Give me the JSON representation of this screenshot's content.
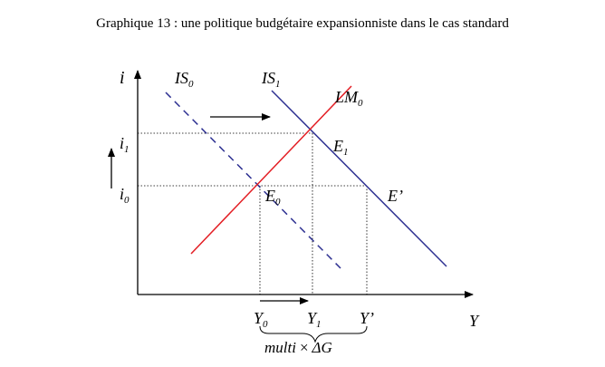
{
  "title": "Graphique 13 : une politique budgétaire expansionniste dans le cas standard",
  "axes": {
    "y_axis": {
      "main": "i"
    },
    "x_axis": {
      "main": "Y"
    }
  },
  "curves": {
    "is0": {
      "main": "IS",
      "sub": "0"
    },
    "is1": {
      "main": "IS",
      "sub": "1"
    },
    "lm0": {
      "main": "LM",
      "sub": "0"
    }
  },
  "points": {
    "e0": {
      "main": "E",
      "sub": "0"
    },
    "e1": {
      "main": "E",
      "sub": "1"
    },
    "eprime": {
      "main": "E’"
    }
  },
  "y_ticks": {
    "i1": {
      "main": "i",
      "sub": "1"
    },
    "i0": {
      "main": "i",
      "sub": "0"
    }
  },
  "x_ticks": {
    "y0": {
      "main": "Y",
      "sub": "0"
    },
    "y1": {
      "main": "Y",
      "sub": "1"
    },
    "yprime": {
      "main": "Y’"
    }
  },
  "brace_label": {
    "left": "multi",
    "times": "×",
    "right": "ΔG"
  },
  "colors": {
    "is_curves": "#2e3192",
    "lm_curve": "#e31e24",
    "axes": "#000000",
    "guides": "#000000"
  }
}
